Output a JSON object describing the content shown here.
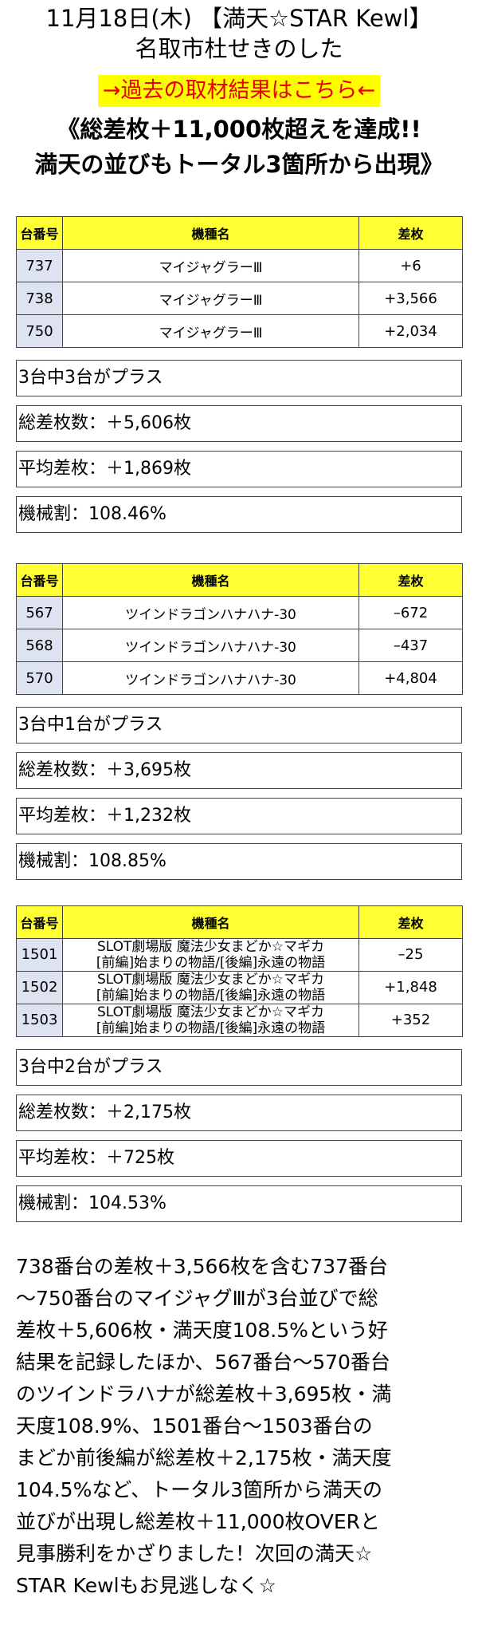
{
  "header": {
    "title_line1": "11月18日(木) 【満天☆STAR Kewl】",
    "title_line2": "名取市杜せきのした",
    "link_label": "→過去の取材結果はこちら←",
    "headline_line1": "《総差枚＋11,000枚超えを達成!!",
    "headline_line2": "満天の並びもトータル3箇所から出現》"
  },
  "colors": {
    "header_bg": "#ffff33",
    "number_bg": "#dde3f1",
    "link_bg": "#ffff00",
    "link_text": "#e60000"
  },
  "sections": [
    {
      "headers": {
        "number": "台番号",
        "machine": "機種名",
        "diff": "差枚"
      },
      "rows": [
        {
          "number": "737",
          "machine": "マイジャグラーⅢ",
          "diff": "+6"
        },
        {
          "number": "738",
          "machine": "マイジャグラーⅢ",
          "diff": "+3,566"
        },
        {
          "number": "750",
          "machine": "マイジャグラーⅢ",
          "diff": "+2,034"
        }
      ],
      "summary": [
        "3台中3台がプラス",
        "総差枚数：＋5,606枚",
        "平均差枚：＋1,869枚",
        "機械割：108.46%"
      ]
    },
    {
      "headers": {
        "number": "台番号",
        "machine": "機種名",
        "diff": "差枚"
      },
      "rows": [
        {
          "number": "567",
          "machine": "ツインドラゴンハナハナ-30",
          "diff": "–672"
        },
        {
          "number": "568",
          "machine": "ツインドラゴンハナハナ-30",
          "diff": "–437"
        },
        {
          "number": "570",
          "machine": "ツインドラゴンハナハナ-30",
          "diff": "+4,804"
        }
      ],
      "summary": [
        "3台中1台がプラス",
        "総差枚数：＋3,695枚",
        "平均差枚：＋1,232枚",
        "機械割：108.85%"
      ]
    },
    {
      "headers": {
        "number": "台番号",
        "machine": "機種名",
        "diff": "差枚"
      },
      "rows": [
        {
          "number": "1501",
          "machine_l1": "SLOT劇場版 魔法少女まどか☆マギカ",
          "machine_l2": "[前編]始まりの物語/[後編]永遠の物語",
          "diff": "–25"
        },
        {
          "number": "1502",
          "machine_l1": "SLOT劇場版 魔法少女まどか☆マギカ",
          "machine_l2": "[前編]始まりの物語/[後編]永遠の物語",
          "diff": "+1,848"
        },
        {
          "number": "1503",
          "machine_l1": "SLOT劇場版 魔法少女まどか☆マギカ",
          "machine_l2": "[前編]始まりの物語/[後編]永遠の物語",
          "diff": "+352"
        }
      ],
      "summary": [
        "3台中2台がプラス",
        "総差枚数：＋2,175枚",
        "平均差枚：＋725枚",
        "機械割：104.53%"
      ]
    }
  ],
  "body_lines": [
    "738番台の差枚＋3,566枚を含む737番台",
    "～750番台のマイジャグⅢが3台並びで総",
    "差枚＋5,606枚・満天度108.5%という好",
    "結果を記録したほか、567番台～570番台",
    "のツインドラハナが総差枚＋3,695枚・満",
    "天度108.9%、1501番台～1503番台の",
    "まどか前後編が総差枚＋2,175枚・満天度",
    "104.5%など、トータル3箇所から満天の",
    "並びが出現し総差枚＋11,000枚OVERと",
    "見事勝利をかざりました！次回の満天☆",
    "STAR Kewlもお見逃しなく☆"
  ]
}
